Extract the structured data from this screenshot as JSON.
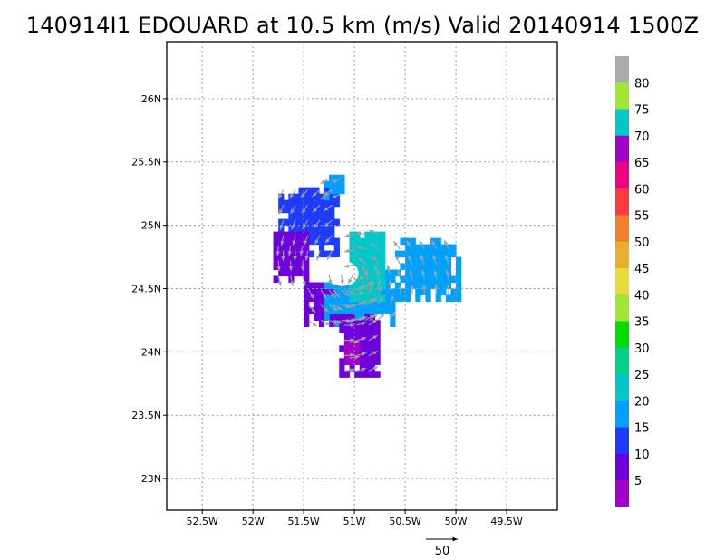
{
  "title": "140914I1 EDOUARD at 10.5 km (m/s) Valid 20140914 1500Z",
  "chart_data": {
    "type": "heatmap",
    "title": "140914I1 EDOUARD at 10.5 km (m/s) Valid 20140914 1500Z",
    "xlabel": "",
    "ylabel": "",
    "xlim": [
      -52.85,
      -49.0
    ],
    "ylim": [
      22.75,
      26.45
    ],
    "x_ticks": [
      -52.5,
      -52.0,
      -51.5,
      -51.0,
      -50.5,
      -50.0,
      -49.5
    ],
    "x_tick_labels": [
      "52.5W",
      "52W",
      "51.5W",
      "51W",
      "50.5W",
      "50W",
      "49.5W"
    ],
    "y_ticks": [
      23.0,
      23.5,
      24.0,
      24.5,
      25.0,
      25.5,
      26.0
    ],
    "y_tick_labels": [
      "23N",
      "23.5N",
      "24N",
      "24.5N",
      "25N",
      "25.5N",
      "26N"
    ],
    "grid": true,
    "colorbar": {
      "labels": [
        "5",
        "10",
        "15",
        "20",
        "25",
        "30",
        "35",
        "40",
        "45",
        "50",
        "55",
        "60",
        "65",
        "70",
        "75",
        "80"
      ],
      "colors": [
        "#a000c8",
        "#6e00dc",
        "#1e3cff",
        "#00a0ff",
        "#00c8c8",
        "#00d28c",
        "#00dc00",
        "#a0e632",
        "#e6dc32",
        "#e6af2d",
        "#f08228",
        "#fa3c3c",
        "#f00082",
        "#a000c8",
        "#00c8c8",
        "#a0e632",
        "#aaaaaa"
      ]
    },
    "wind_field": {
      "levels": {
        "5": 0,
        "10": 1,
        "15": 2,
        "20": 3,
        "25": 4
      },
      "regions": [
        {
          "name": "northwest-arc",
          "level": "15",
          "lon_range": [
            -51.75,
            -51.15
          ],
          "lat_range": [
            24.75,
            25.3
          ]
        },
        {
          "name": "west-band",
          "level": "10",
          "lon_range": [
            -51.8,
            -51.45
          ],
          "lat_range": [
            24.55,
            24.95
          ]
        },
        {
          "name": "southwest-core",
          "level": "10",
          "lon_range": [
            -51.5,
            -50.85
          ],
          "lat_range": [
            24.2,
            24.55
          ]
        },
        {
          "name": "core-ring",
          "level": "20",
          "lon_range": [
            -51.3,
            -50.6
          ],
          "lat_range": [
            24.2,
            24.65
          ]
        },
        {
          "name": "core-peak",
          "level": "25",
          "lon_range": [
            -51.05,
            -50.7
          ],
          "lat_range": [
            24.4,
            24.95
          ]
        },
        {
          "name": "east-band",
          "level": "20",
          "lon_range": [
            -50.6,
            -49.98
          ],
          "lat_range": [
            24.4,
            24.9
          ]
        },
        {
          "name": "south-tail",
          "level": "10",
          "lon_range": [
            -51.15,
            -50.75
          ],
          "lat_range": [
            23.8,
            24.3
          ]
        },
        {
          "name": "south-minimum",
          "level": "5",
          "lon_range": [
            -51.1,
            -50.95
          ],
          "lat_range": [
            23.9,
            24.1
          ]
        },
        {
          "name": "north-spur",
          "level": "20",
          "lon_range": [
            -51.3,
            -51.1
          ],
          "lat_range": [
            25.2,
            25.4
          ]
        }
      ]
    },
    "reference_vector": {
      "label": "50",
      "value": 50
    }
  }
}
